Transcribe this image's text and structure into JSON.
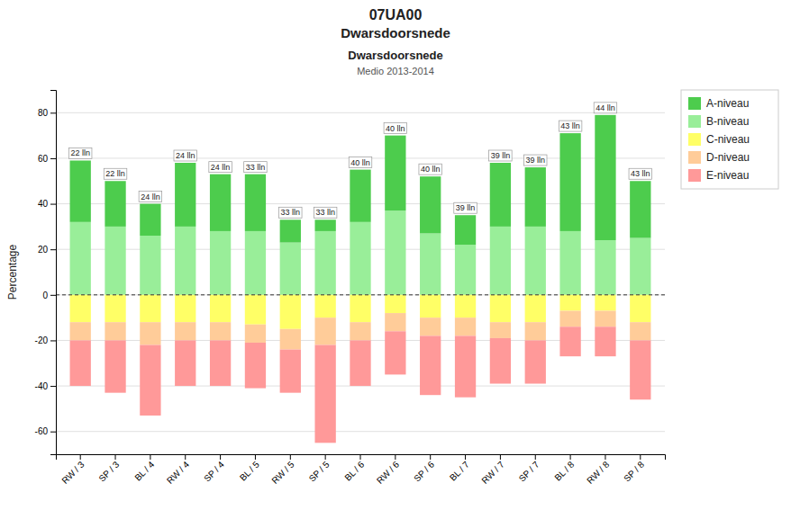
{
  "chart_data": {
    "type": "bar",
    "stacked": true,
    "title": "07UA00",
    "subtitle": "Dwarsdoorsnede",
    "y_label": "Percentage",
    "categories": [
      "RW / 3",
      "SP / 3",
      "BL / 4",
      "RW / 4",
      "SP / 4",
      "BL / 5",
      "RW / 5",
      "SP / 5",
      "BL / 6",
      "RW / 6",
      "SP / 6",
      "BL / 7",
      "RW / 7",
      "SP / 7",
      "BL / 8",
      "RW / 8",
      "SP / 8"
    ],
    "series": [
      {
        "name": "A-niveau",
        "color": "#4dcc4d",
        "values": [
          27,
          20,
          14,
          28,
          25,
          25,
          10,
          5,
          23,
          33,
          25,
          13,
          28,
          26,
          43,
          55,
          25
        ]
      },
      {
        "name": "B-niveau",
        "color": "#99ee99",
        "values": [
          32,
          30,
          26,
          30,
          28,
          28,
          23,
          28,
          32,
          37,
          27,
          22,
          30,
          30,
          28,
          24,
          25
        ]
      },
      {
        "name": "C-niveau",
        "color": "#ffff66",
        "values": [
          -12,
          -12,
          -12,
          -12,
          -12,
          -13,
          -15,
          -10,
          -12,
          -8,
          -10,
          -10,
          -12,
          -12,
          -7,
          -7,
          -12
        ]
      },
      {
        "name": "D-niveau",
        "color": "#ffcc99",
        "values": [
          -8,
          -8,
          -10,
          -8,
          -8,
          -8,
          -9,
          -12,
          -8,
          -8,
          -8,
          -8,
          -7,
          -8,
          -7,
          -7,
          -8
        ]
      },
      {
        "name": "E-niveau",
        "color": "#ff9999",
        "values": [
          -20,
          -23,
          -31,
          -20,
          -20,
          -20,
          -19,
          -43,
          -20,
          -19,
          -26,
          -27,
          -20,
          -19,
          -13,
          -13,
          -26
        ]
      }
    ],
    "ylim": [
      -70,
      90
    ],
    "yticks": [
      -60,
      -40,
      -20,
      0,
      20,
      40,
      60,
      80
    ],
    "grid": true,
    "legend": "top-right",
    "annotations": [
      {
        "text": "Dwarsdoorsnede"
      },
      {
        "text": "Medio 2013-2014"
      },
      {
        "text": "22 lln",
        "category": "RW / 3"
      },
      {
        "text": "22 lln",
        "category": "SP / 3"
      },
      {
        "text": "24 lln",
        "category": "BL / 4"
      },
      {
        "text": "24 lln",
        "category": "RW / 4"
      },
      {
        "text": "24 lln",
        "category": "SP / 4"
      },
      {
        "text": "33 lln",
        "category": "BL / 5"
      },
      {
        "text": "33 lln",
        "category": "RW / 5"
      },
      {
        "text": "33 lln",
        "category": "SP / 5"
      },
      {
        "text": "40 lln",
        "category": "BL / 6"
      },
      {
        "text": "40 lln",
        "category": "RW / 6"
      },
      {
        "text": "40 lln",
        "category": "SP / 6"
      },
      {
        "text": "39 lln",
        "category": "BL / 7"
      },
      {
        "text": "39 lln",
        "category": "RW / 7"
      },
      {
        "text": "39 lln",
        "category": "SP / 7"
      },
      {
        "text": "43 lln",
        "category": "BL / 8"
      },
      {
        "text": "44 lln",
        "category": "RW / 8"
      },
      {
        "text": "43 lln",
        "category": "SP / 8"
      }
    ]
  }
}
